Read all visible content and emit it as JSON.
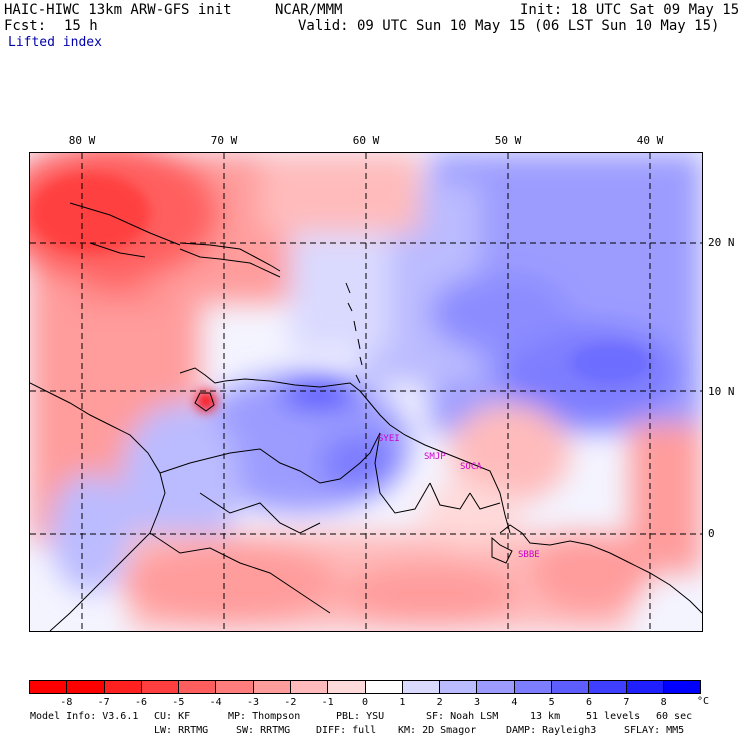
{
  "header": {
    "model_title": "HAIC-HIWC 13km ARW-GFS init",
    "org": "NCAR/MMM",
    "init": "Init: 18 UTC Sat 09 May 15",
    "fcst_label": "Fcst:",
    "fcst_value": "15 h",
    "valid": "Valid: 09 UTC Sun 10 May 15 (06 LST Sun 10 May 15)",
    "field": "Lifted index"
  },
  "map": {
    "lon_labels": [
      "80 W",
      "70 W",
      "60 W",
      "50 W",
      "40 W"
    ],
    "lat_labels": [
      "20 N",
      "10 N",
      "0"
    ],
    "stations": [
      "SYEI",
      "SMJP",
      "SOCA",
      "SBBE"
    ]
  },
  "colorbar": {
    "labels": [
      "-8",
      "-7",
      "-6",
      "-5",
      "-4",
      "-3",
      "-2",
      "-1",
      "0",
      "1",
      "2",
      "3",
      "4",
      "5",
      "6",
      "7",
      "8"
    ],
    "unit": "°C",
    "colors": [
      "#ff0000",
      "#ff2020",
      "#ff3f3f",
      "#ff5e5e",
      "#ff7d7d",
      "#ff9c9c",
      "#ffbbbb",
      "#ffdada",
      "#ffffff",
      "#dadaff",
      "#bbbbff",
      "#9c9cff",
      "#7d7dff",
      "#5e5eff",
      "#3f3fff",
      "#2020ff",
      "#0000ff"
    ]
  },
  "footer": {
    "line1": [
      "Model Info: V3.6.1",
      "CU: KF",
      "MP: Thompson",
      "PBL: YSU",
      "SF: Noah LSM",
      "13 km",
      "51 levels",
      "60 sec"
    ],
    "line2": [
      "LW: RRTMG",
      "SW: RRTMG",
      "DIFF: full",
      "KM: 2D Smagor",
      "DAMP: Rayleigh3",
      "SFLAY: MM5"
    ]
  }
}
